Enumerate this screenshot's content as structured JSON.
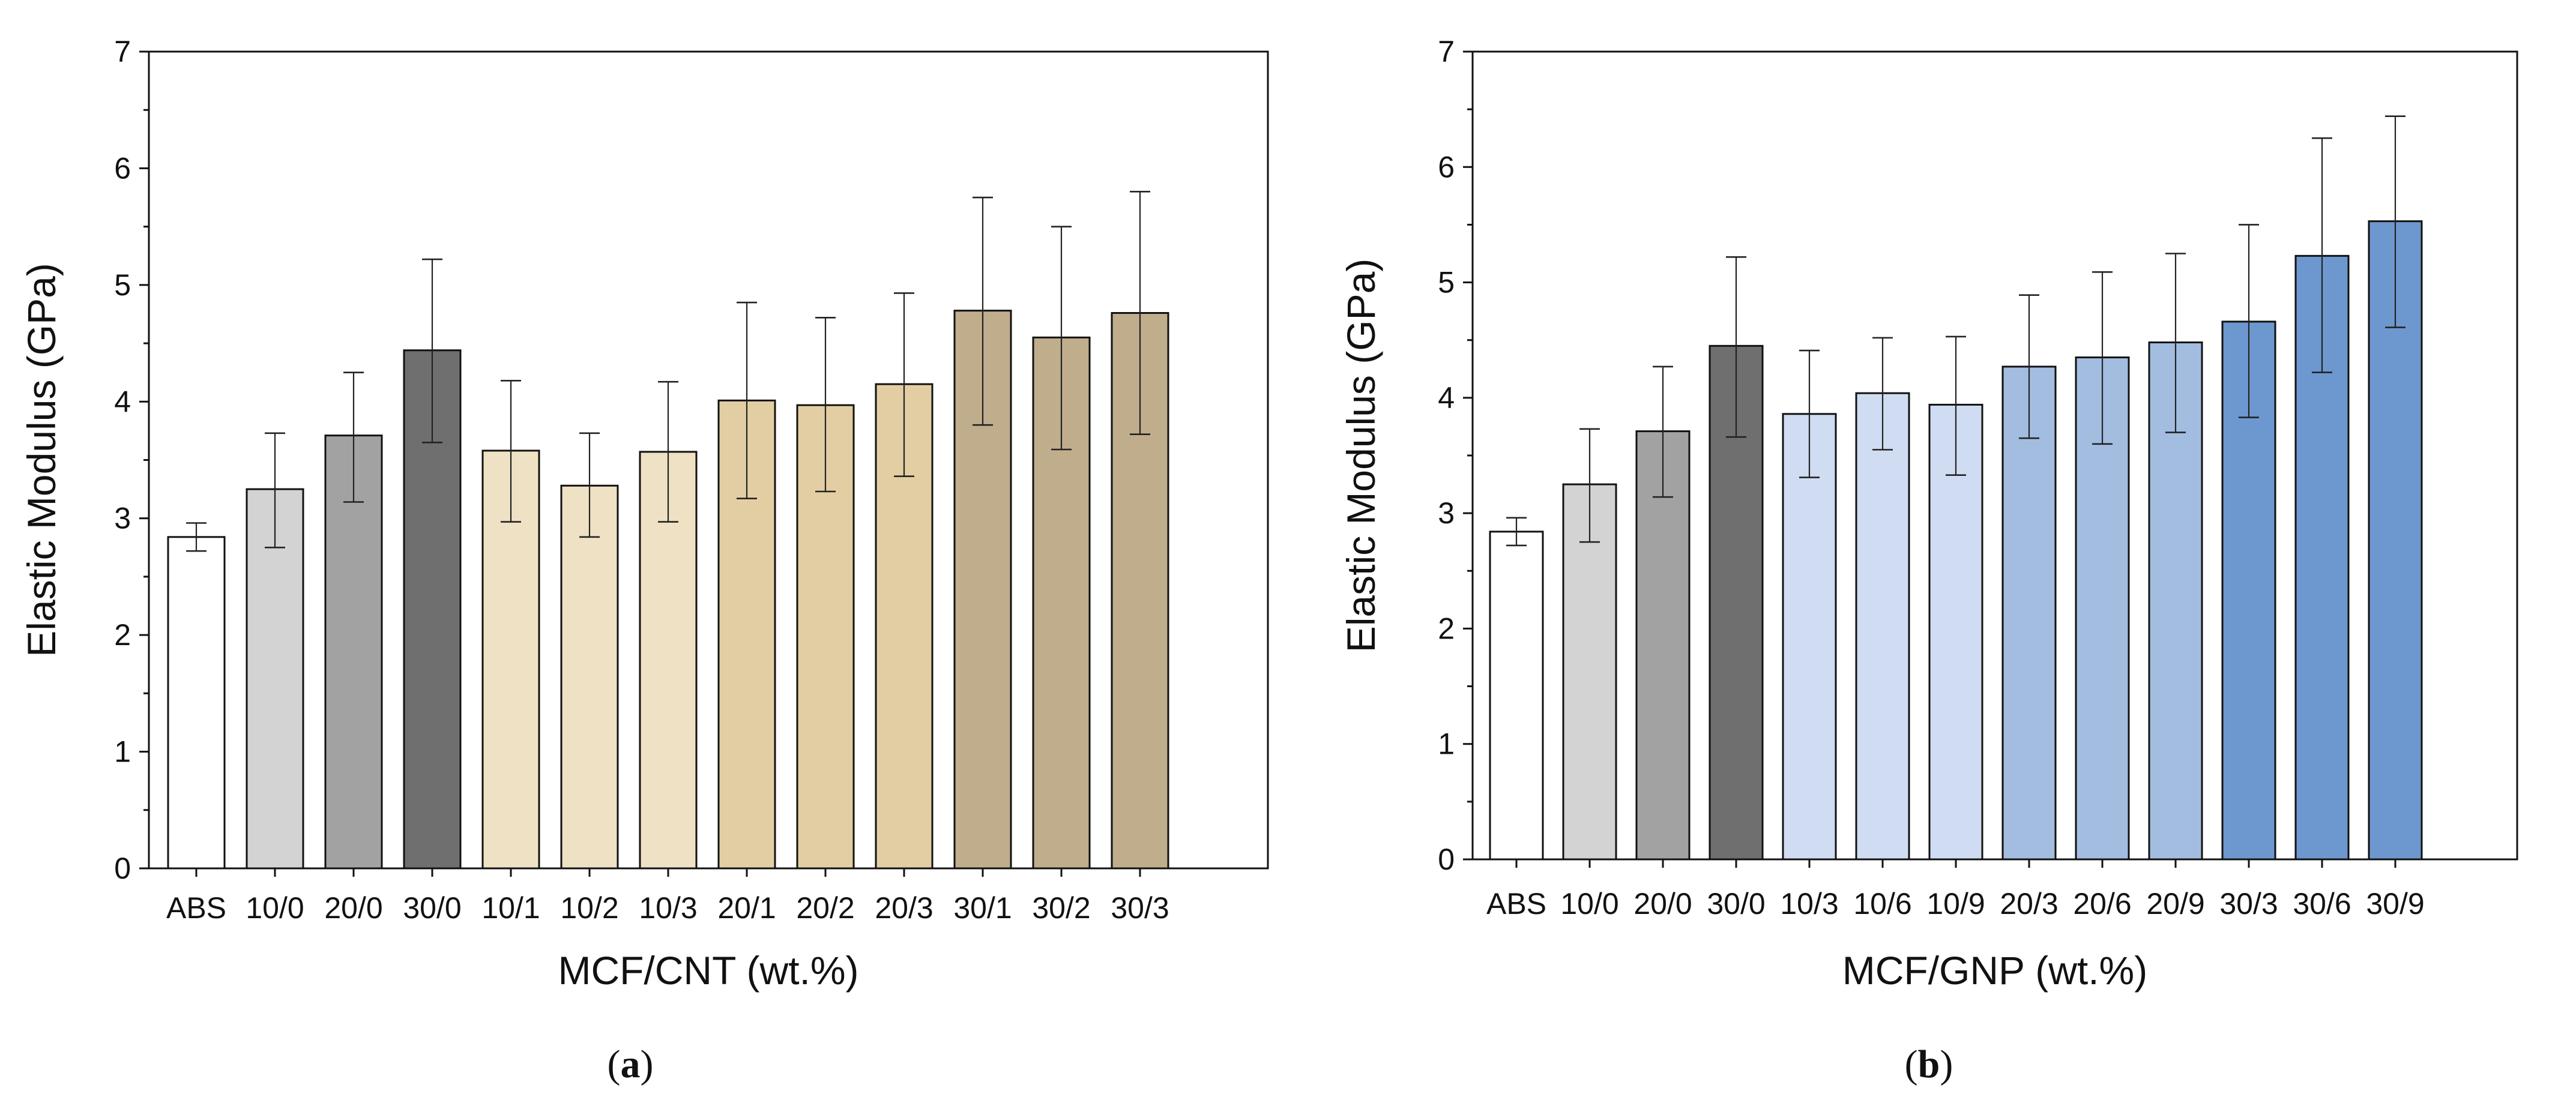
{
  "chart_data": [
    {
      "type": "bar",
      "panel_label": "(a)",
      "panel_letter": "a",
      "xlabel": "MCF/CNT (wt.%)",
      "ylabel": "Elastic Modulus (GPa)",
      "ylim": [
        0,
        7
      ],
      "yticks": [
        "0",
        "1",
        "2",
        "3",
        "4",
        "5",
        "6",
        "7"
      ],
      "categories": [
        "ABS",
        "10/0",
        "20/0",
        "30/0",
        "10/1",
        "10/2",
        "10/3",
        "20/1",
        "20/2",
        "20/3",
        "30/1",
        "30/2",
        "30/3"
      ],
      "values": [
        2.84,
        3.25,
        3.71,
        4.44,
        3.58,
        3.28,
        3.57,
        4.01,
        3.97,
        4.15,
        4.78,
        4.55,
        4.76
      ],
      "error_low": [
        2.72,
        2.75,
        3.14,
        3.65,
        2.97,
        2.84,
        2.97,
        3.17,
        3.23,
        3.36,
        3.8,
        3.59,
        3.72
      ],
      "error_high": [
        2.96,
        3.73,
        4.25,
        5.22,
        4.18,
        3.73,
        4.17,
        4.85,
        4.72,
        4.93,
        5.75,
        5.5,
        5.8
      ],
      "colors": [
        "#ffffff",
        "#d3d3d3",
        "#a2a2a2",
        "#6f6f6f",
        "#efe1c3",
        "#efe1c3",
        "#efe1c3",
        "#e3cea3",
        "#e3cea3",
        "#e3cea3",
        "#bfad8c",
        "#bfad8c",
        "#bfad8c"
      ],
      "grid": false
    },
    {
      "type": "bar",
      "panel_label": "(b)",
      "panel_letter": "b",
      "xlabel": "MCF/GNP (wt.%)",
      "ylabel": "Elastic Modulus (GPa)",
      "ylim": [
        0,
        7
      ],
      "yticks": [
        "0",
        "1",
        "2",
        "3",
        "4",
        "5",
        "6",
        "7"
      ],
      "categories": [
        "ABS",
        "10/0",
        "20/0",
        "30/0",
        "10/3",
        "10/6",
        "10/9",
        "20/3",
        "20/6",
        "20/9",
        "30/3",
        "30/6",
        "30/9"
      ],
      "values": [
        2.84,
        3.25,
        3.71,
        4.45,
        3.86,
        4.04,
        3.94,
        4.27,
        4.35,
        4.48,
        4.66,
        5.23,
        5.53
      ],
      "error_low": [
        2.72,
        2.75,
        3.14,
        3.66,
        3.31,
        3.55,
        3.33,
        3.65,
        3.6,
        3.7,
        3.83,
        4.22,
        4.61
      ],
      "error_high": [
        2.96,
        3.73,
        4.27,
        5.22,
        4.41,
        4.52,
        4.53,
        4.89,
        5.09,
        5.25,
        5.5,
        6.25,
        6.44
      ],
      "colors": [
        "#ffffff",
        "#d3d3d3",
        "#a2a2a2",
        "#6f6f6f",
        "#cfdcf1",
        "#cfdcf1",
        "#cfdcf1",
        "#a3bde0",
        "#a3bde0",
        "#a3bde0",
        "#6d98cf",
        "#6d98cf",
        "#6d98cf"
      ],
      "grid": false
    }
  ]
}
